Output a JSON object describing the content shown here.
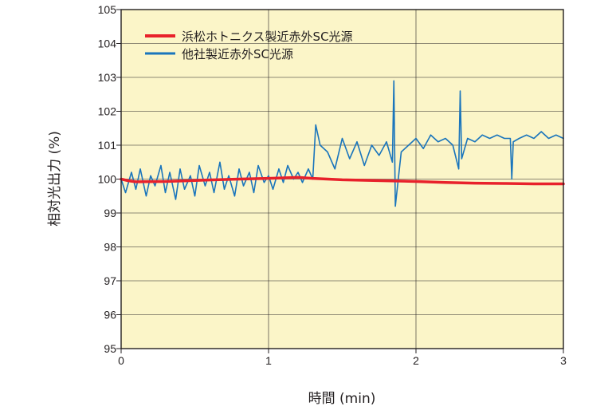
{
  "chart_data": {
    "type": "line",
    "title": "",
    "xlabel": "時間 (min)",
    "ylabel": "相対光出力 (%)",
    "xlim": [
      0,
      3
    ],
    "ylim": [
      95,
      105
    ],
    "x_ticks": [
      "0",
      "1",
      "2",
      "3"
    ],
    "y_ticks": [
      "95",
      "96",
      "97",
      "98",
      "99",
      "100",
      "101",
      "102",
      "103",
      "104",
      "105"
    ],
    "grid": true,
    "legend_position": "top-left",
    "plot_background": "#fbf5c8",
    "series": [
      {
        "name": "浜松ホトニクス製近赤外SC光源",
        "color": "#e8212b",
        "x": [
          0,
          0.05,
          0.1,
          0.3,
          0.5,
          0.8,
          1.0,
          1.2,
          1.3,
          1.5,
          1.8,
          2.0,
          2.2,
          2.4,
          2.6,
          2.8,
          3.0
        ],
        "y": [
          100.0,
          99.95,
          99.92,
          99.93,
          99.96,
          100.0,
          100.02,
          100.05,
          100.02,
          99.98,
          99.95,
          99.93,
          99.9,
          99.88,
          99.87,
          99.86,
          99.86
        ]
      },
      {
        "name": "他社製近赤外SC光源",
        "color": "#1a75bc",
        "x": [
          0,
          0.03,
          0.07,
          0.1,
          0.13,
          0.17,
          0.2,
          0.23,
          0.27,
          0.3,
          0.33,
          0.37,
          0.4,
          0.43,
          0.47,
          0.5,
          0.53,
          0.57,
          0.6,
          0.63,
          0.67,
          0.7,
          0.73,
          0.77,
          0.8,
          0.83,
          0.87,
          0.9,
          0.93,
          0.97,
          1.0,
          1.03,
          1.07,
          1.1,
          1.13,
          1.17,
          1.2,
          1.23,
          1.27,
          1.3,
          1.32,
          1.35,
          1.4,
          1.45,
          1.5,
          1.55,
          1.6,
          1.65,
          1.7,
          1.75,
          1.8,
          1.84,
          1.85,
          1.86,
          1.9,
          1.95,
          2.0,
          2.05,
          2.1,
          2.15,
          2.2,
          2.25,
          2.29,
          2.3,
          2.31,
          2.35,
          2.4,
          2.45,
          2.5,
          2.55,
          2.6,
          2.64,
          2.65,
          2.66,
          2.7,
          2.75,
          2.8,
          2.85,
          2.9,
          2.95,
          3.0
        ],
        "y": [
          100.0,
          99.6,
          100.2,
          99.7,
          100.3,
          99.5,
          100.1,
          99.8,
          100.4,
          99.6,
          100.2,
          99.4,
          100.3,
          99.7,
          100.1,
          99.5,
          100.4,
          99.8,
          100.2,
          99.6,
          100.5,
          99.7,
          100.1,
          99.5,
          100.3,
          99.8,
          100.2,
          99.6,
          100.4,
          99.9,
          100.1,
          99.7,
          100.3,
          99.9,
          100.4,
          100.0,
          100.2,
          99.9,
          100.3,
          100.0,
          101.6,
          101.0,
          100.8,
          100.3,
          101.2,
          100.6,
          101.1,
          100.4,
          101.0,
          100.7,
          101.1,
          100.5,
          102.9,
          99.2,
          100.8,
          101.0,
          101.2,
          100.9,
          101.3,
          101.1,
          101.2,
          101.0,
          100.3,
          102.6,
          100.6,
          101.2,
          101.1,
          101.3,
          101.2,
          101.3,
          101.2,
          101.2,
          100.0,
          101.1,
          101.2,
          101.3,
          101.2,
          101.4,
          101.2,
          101.3,
          101.2
        ]
      }
    ]
  }
}
